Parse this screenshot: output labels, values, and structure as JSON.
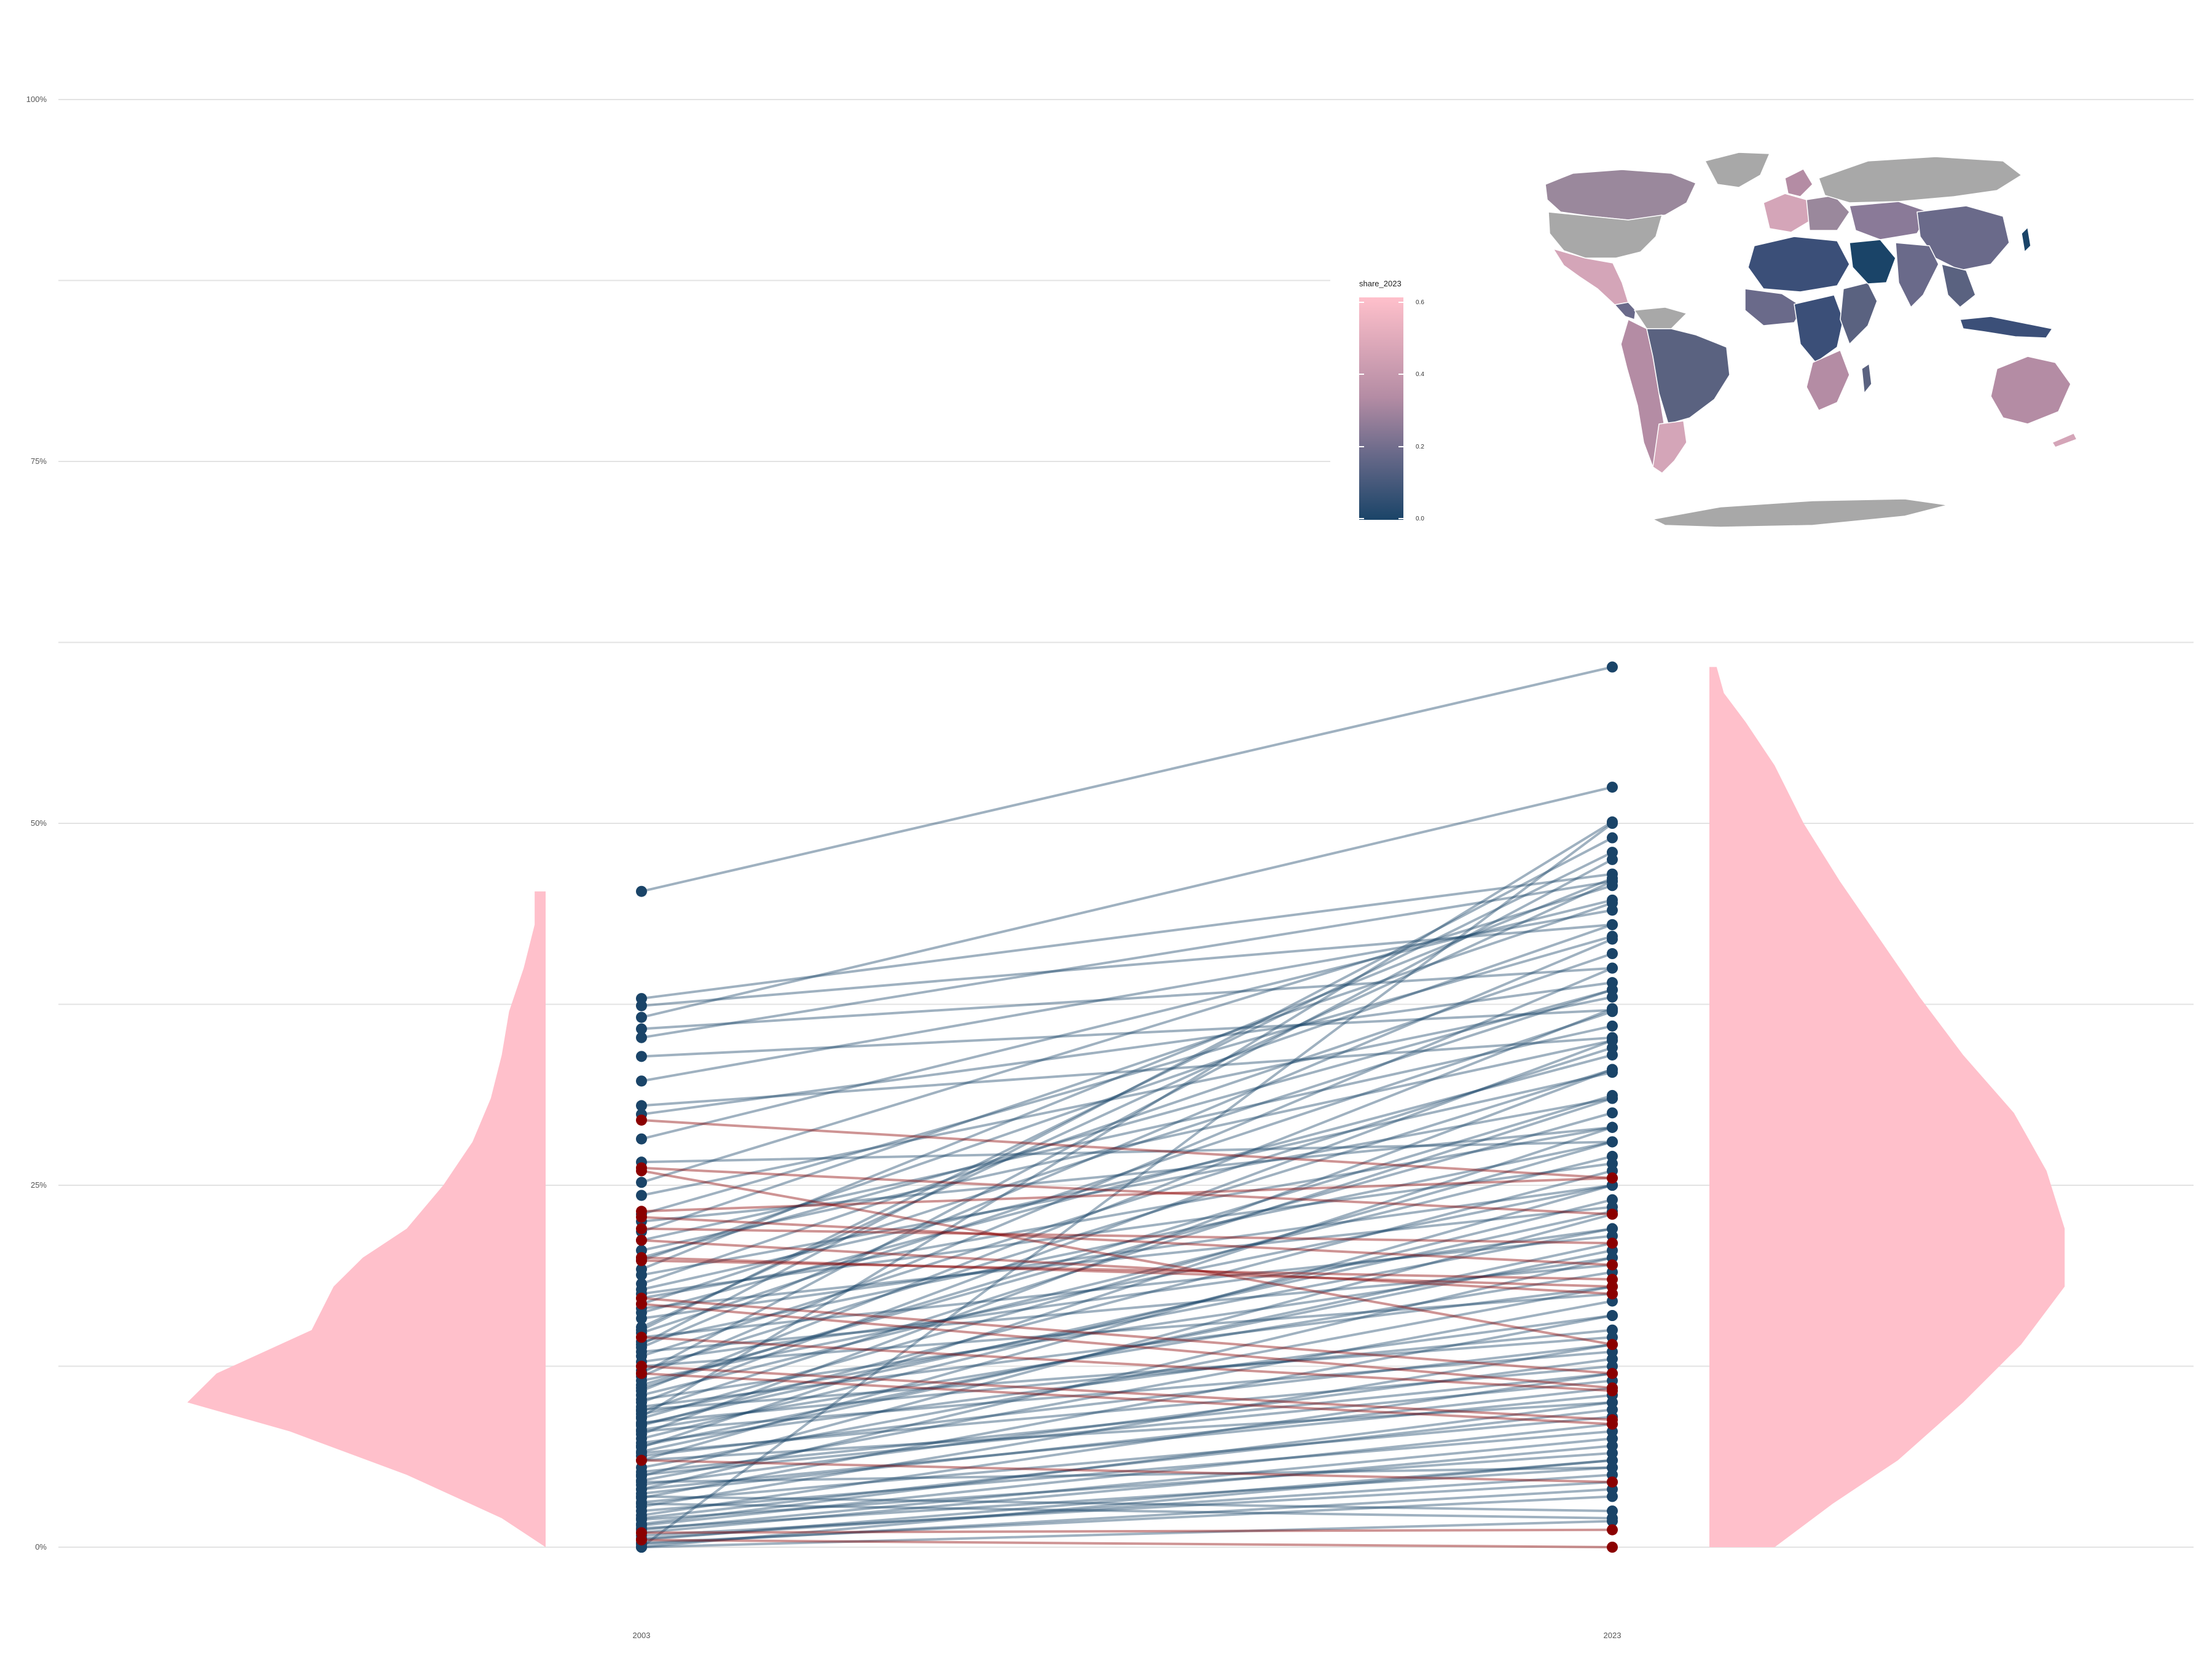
{
  "colors": {
    "background": "#ffffff",
    "grid": "#e3e3e3",
    "density_fill": "#ffc0cb",
    "increase": "#1a4468",
    "decrease": "#8b0000",
    "map_missing": "#a8a8a8",
    "gradient_low": "#1a4468",
    "gradient_high": "#ffc0cb"
  },
  "chart_data": [
    {
      "type": "slope",
      "title": "",
      "xlabel": "",
      "ylabel": "",
      "categories": [
        "2003",
        "2023"
      ],
      "ylim": [
        0,
        1
      ],
      "y_ticks": [
        {
          "value": 0,
          "label": "0%"
        },
        {
          "value": 0.25,
          "label": "25%"
        },
        {
          "value": 0.5,
          "label": "50%"
        },
        {
          "value": 0.75,
          "label": "75%"
        },
        {
          "value": 1.0,
          "label": "100%"
        }
      ],
      "minor_gridlines": [
        0.125,
        0.375,
        0.625,
        0.875
      ],
      "grid": true,
      "legend": "none",
      "pairs_increase": [
        [
          0.453,
          0.608
        ],
        [
          0.379,
          0.465
        ],
        [
          0.374,
          0.43
        ],
        [
          0.366,
          0.525
        ],
        [
          0.358,
          0.4
        ],
        [
          0.352,
          0.46
        ],
        [
          0.339,
          0.371
        ],
        [
          0.322,
          0.44
        ],
        [
          0.305,
          0.352
        ],
        [
          0.299,
          0.39
        ],
        [
          0.282,
          0.447
        ],
        [
          0.266,
          0.28
        ],
        [
          0.252,
          0.457
        ],
        [
          0.243,
          0.38
        ],
        [
          0.23,
          0.422
        ],
        [
          0.225,
          0.29
        ],
        [
          0.218,
          0.445
        ],
        [
          0.212,
          0.36
        ],
        [
          0.205,
          0.35
        ],
        [
          0.198,
          0.43
        ],
        [
          0.192,
          0.462
        ],
        [
          0.188,
          0.31
        ],
        [
          0.182,
          0.41
        ],
        [
          0.178,
          0.328
        ],
        [
          0.172,
          0.29
        ],
        [
          0.168,
          0.385
        ],
        [
          0.162,
          0.34
        ],
        [
          0.158,
          0.25
        ],
        [
          0.152,
          0.46
        ],
        [
          0.148,
          0.37
        ],
        [
          0.142,
          0.28
        ],
        [
          0.138,
          0.42
        ],
        [
          0.132,
          0.345
        ],
        [
          0.128,
          0.22
        ],
        [
          0.122,
          0.33
        ],
        [
          0.118,
          0.4
        ],
        [
          0.115,
          0.25
        ],
        [
          0.112,
          0.3
        ],
        [
          0.108,
          0.372
        ],
        [
          0.105,
          0.27
        ],
        [
          0.102,
          0.2
        ],
        [
          0.1,
          0.35
        ],
        [
          0.097,
          0.18
        ],
        [
          0.094,
          0.31
        ],
        [
          0.092,
          0.22
        ],
        [
          0.089,
          0.28
        ],
        [
          0.086,
          0.15
        ],
        [
          0.084,
          0.26
        ],
        [
          0.081,
          0.19
        ],
        [
          0.078,
          0.33
        ],
        [
          0.075,
          0.24
        ],
        [
          0.072,
          0.16
        ],
        [
          0.069,
          0.29
        ],
        [
          0.066,
          0.21
        ],
        [
          0.063,
          0.14
        ],
        [
          0.06,
          0.25
        ],
        [
          0.055,
          0.18
        ],
        [
          0.052,
          0.12
        ],
        [
          0.049,
          0.23
        ],
        [
          0.046,
          0.17
        ],
        [
          0.043,
          0.13
        ],
        [
          0.04,
          0.2
        ],
        [
          0.037,
          0.11
        ],
        [
          0.034,
          0.16
        ],
        [
          0.031,
          0.09
        ],
        [
          0.028,
          0.14
        ],
        [
          0.025,
          0.08
        ],
        [
          0.022,
          0.12
        ],
        [
          0.019,
          0.065
        ],
        [
          0.016,
          0.1
        ],
        [
          0.013,
          0.055
        ],
        [
          0.01,
          0.07
        ],
        [
          0.008,
          0.045
        ],
        [
          0.005,
          0.06
        ],
        [
          0.003,
          0.035
        ],
        [
          0.0,
          0.5
        ],
        [
          0.0,
          0.06
        ],
        [
          0.0,
          0.018
        ],
        [
          0.09,
          0.501
        ],
        [
          0.15,
          0.48
        ],
        [
          0.14,
          0.49
        ],
        [
          0.12,
          0.475
        ],
        [
          0.2,
          0.385
        ],
        [
          0.11,
          0.312
        ],
        [
          0.085,
          0.232
        ],
        [
          0.07,
          0.205
        ],
        [
          0.06,
          0.1
        ],
        [
          0.045,
          0.055
        ],
        [
          0.035,
          0.025
        ],
        [
          0.03,
          0.02
        ],
        [
          0.175,
          0.265
        ],
        [
          0.165,
          0.235
        ],
        [
          0.145,
          0.215
        ],
        [
          0.135,
          0.195
        ],
        [
          0.125,
          0.175
        ],
        [
          0.095,
          0.145
        ],
        [
          0.08,
          0.135
        ],
        [
          0.065,
          0.125
        ],
        [
          0.05,
          0.115
        ],
        [
          0.04,
          0.105
        ],
        [
          0.02,
          0.095
        ],
        [
          0.015,
          0.085
        ],
        [
          0.012,
          0.075
        ],
        [
          0.006,
          0.05
        ],
        [
          0.002,
          0.04
        ]
      ],
      "pairs_decrease": [
        [
          0.295,
          0.255
        ],
        [
          0.262,
          0.23
        ],
        [
          0.26,
          0.14
        ],
        [
          0.232,
          0.255
        ],
        [
          0.228,
          0.195
        ],
        [
          0.22,
          0.21
        ],
        [
          0.212,
          0.175
        ],
        [
          0.2,
          0.18
        ],
        [
          0.198,
          0.185
        ],
        [
          0.172,
          0.12
        ],
        [
          0.168,
          0.11
        ],
        [
          0.145,
          0.108
        ],
        [
          0.12,
          0.085
        ],
        [
          0.125,
          0.088
        ],
        [
          0.06,
          0.045
        ],
        [
          0.005,
          0.0
        ],
        [
          0.01,
          0.012
        ]
      ],
      "density_2003": [
        [
          0.0,
          0.0
        ],
        [
          0.02,
          0.12
        ],
        [
          0.05,
          0.38
        ],
        [
          0.08,
          0.7
        ],
        [
          0.1,
          0.98
        ],
        [
          0.12,
          0.9
        ],
        [
          0.15,
          0.64
        ],
        [
          0.18,
          0.58
        ],
        [
          0.2,
          0.5
        ],
        [
          0.22,
          0.38
        ],
        [
          0.25,
          0.28
        ],
        [
          0.28,
          0.2
        ],
        [
          0.31,
          0.15
        ],
        [
          0.34,
          0.12
        ],
        [
          0.37,
          0.1
        ],
        [
          0.4,
          0.06
        ],
        [
          0.43,
          0.03
        ],
        [
          0.453,
          0.03
        ]
      ],
      "density_2023": [
        [
          0.0,
          0.18
        ],
        [
          0.03,
          0.34
        ],
        [
          0.06,
          0.52
        ],
        [
          0.1,
          0.7
        ],
        [
          0.14,
          0.86
        ],
        [
          0.18,
          0.98
        ],
        [
          0.22,
          0.98
        ],
        [
          0.26,
          0.93
        ],
        [
          0.3,
          0.84
        ],
        [
          0.34,
          0.7
        ],
        [
          0.38,
          0.58
        ],
        [
          0.42,
          0.47
        ],
        [
          0.46,
          0.36
        ],
        [
          0.5,
          0.26
        ],
        [
          0.54,
          0.18
        ],
        [
          0.57,
          0.1
        ],
        [
          0.59,
          0.04
        ],
        [
          0.608,
          0.02
        ]
      ]
    },
    {
      "type": "choropleth",
      "legend_title": "share_2023",
      "legend_ticks": [
        "0.6",
        "0.4",
        "0.2",
        "0.0"
      ],
      "value_range": [
        0.0,
        0.6
      ],
      "legend_placement": "left of map"
    }
  ]
}
